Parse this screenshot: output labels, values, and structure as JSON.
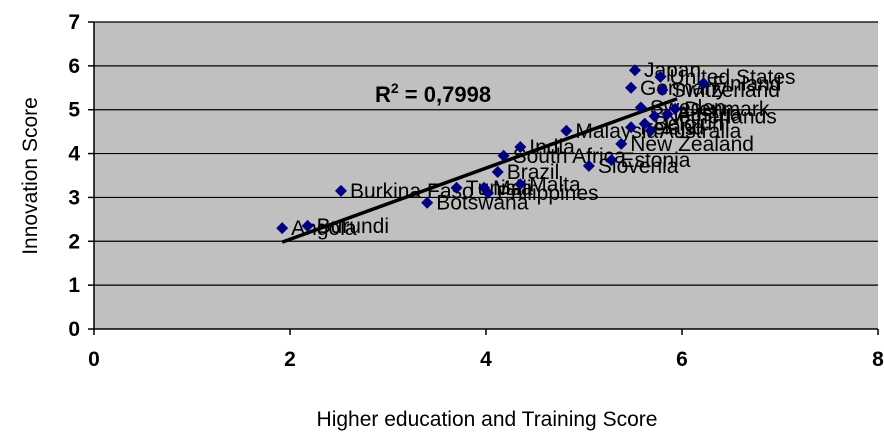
{
  "chart_data": {
    "type": "scatter",
    "xlabel": "Higher education and Training Score",
    "ylabel": "Innovation Score",
    "xlim": [
      0,
      8
    ],
    "ylim": [
      0,
      7
    ],
    "xticks": [
      0,
      2,
      4,
      6,
      8
    ],
    "yticks": [
      0,
      1,
      2,
      3,
      4,
      5,
      6,
      7
    ],
    "grid": "horizontal",
    "plot_background": "#c0c0c0",
    "marker_color": "#000080",
    "trendline": {
      "from": [
        1.92,
        1.98
      ],
      "to": [
        5.95,
        5.25
      ],
      "annotation": {
        "prefix": "R",
        "superscript": "2",
        "text": " = 0,7998"
      }
    },
    "points": [
      {
        "x": 1.92,
        "y": 2.3,
        "label": "Angola"
      },
      {
        "x": 2.18,
        "y": 2.35,
        "label": "Burundi"
      },
      {
        "x": 2.52,
        "y": 3.15,
        "label": "Burkina Faso"
      },
      {
        "x": 3.4,
        "y": 2.88,
        "label": "Botswana"
      },
      {
        "x": 3.7,
        "y": 3.22,
        "label": "Tunisia"
      },
      {
        "x": 3.98,
        "y": 3.22,
        "label": "Mali"
      },
      {
        "x": 4.02,
        "y": 3.1,
        "label": "Philippines"
      },
      {
        "x": 4.35,
        "y": 3.3,
        "label": "Malta"
      },
      {
        "x": 4.12,
        "y": 3.58,
        "label": "Brazil"
      },
      {
        "x": 4.18,
        "y": 3.95,
        "label": "South Africa"
      },
      {
        "x": 4.35,
        "y": 4.15,
        "label": "India"
      },
      {
        "x": 4.82,
        "y": 4.52,
        "label": "Malaysia"
      },
      {
        "x": 5.05,
        "y": 3.72,
        "label": "Slovenia"
      },
      {
        "x": 5.28,
        "y": 3.85,
        "label": "Estonia"
      },
      {
        "x": 5.38,
        "y": 4.22,
        "label": "New Zealand"
      },
      {
        "x": 5.48,
        "y": 4.6,
        "label": "Ireland"
      },
      {
        "x": 5.62,
        "y": 4.68,
        "label": "Belgium"
      },
      {
        "x": 5.68,
        "y": 4.52,
        "label": "Australia"
      },
      {
        "x": 5.72,
        "y": 4.85,
        "label": "Netherlands"
      },
      {
        "x": 5.85,
        "y": 4.9,
        "label": "Austria"
      },
      {
        "x": 5.93,
        "y": 5.02,
        "label": "Denmark"
      },
      {
        "x": 5.58,
        "y": 5.05,
        "label": "Sweden"
      },
      {
        "x": 5.48,
        "y": 5.5,
        "label": "Germany"
      },
      {
        "x": 5.52,
        "y": 5.9,
        "label": "Japan"
      },
      {
        "x": 5.78,
        "y": 5.75,
        "label": "United States"
      },
      {
        "x": 5.8,
        "y": 5.45,
        "label": "Switzerland"
      },
      {
        "x": 6.22,
        "y": 5.6,
        "label": "Finland"
      }
    ]
  }
}
